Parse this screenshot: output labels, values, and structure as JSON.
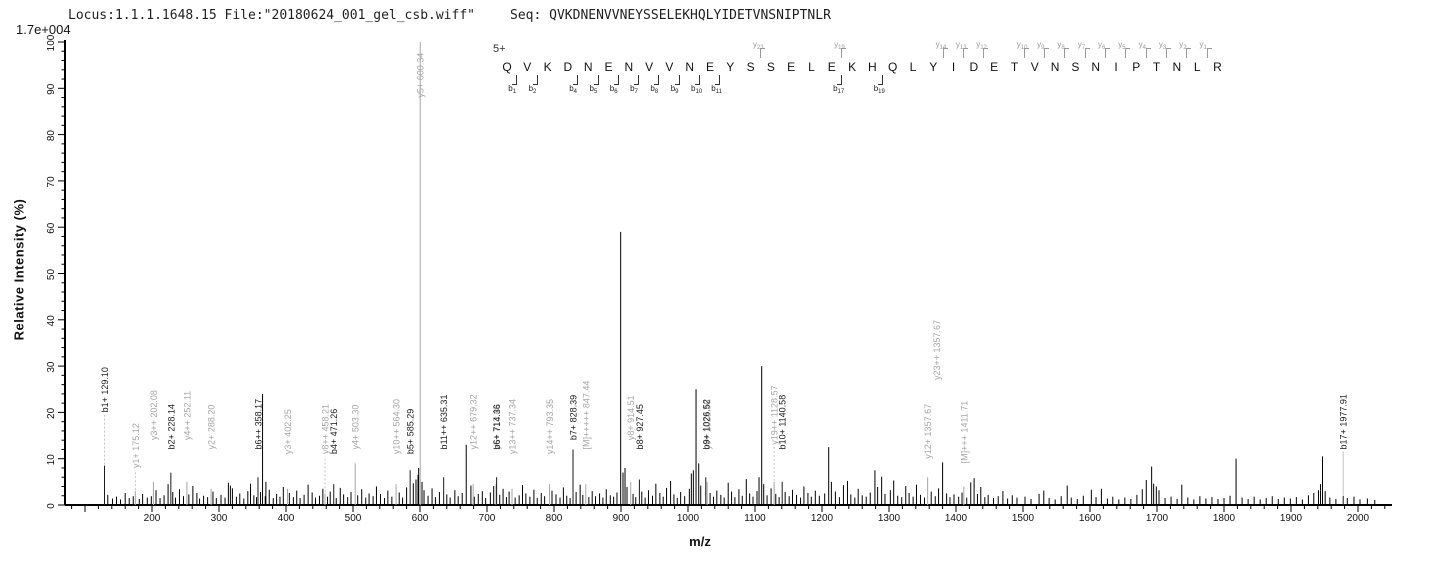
{
  "header": {
    "locus_file": "Locus:1.1.1.1648.15 File:\"20180624_001_gel_csb.wiff\"",
    "seq_label": "Seq:",
    "sequence": "QVKDNENVVNEYSSELEKHQLYIDETVNSNIPTNLR",
    "max_intensity_scale": "1.7e+004"
  },
  "sequence_annotation": {
    "charge": "5+",
    "residues": "QVKDNENVVNEYSSELEKHQLYIDETVNSNIPTNLR",
    "fragment_marks": {
      "b": [
        1,
        2,
        4,
        5,
        6,
        7,
        8,
        9,
        10,
        11,
        17,
        19
      ],
      "y": [
        23,
        19,
        14,
        13,
        12,
        10,
        9,
        8,
        7,
        6,
        5,
        4,
        3,
        2,
        1
      ]
    }
  },
  "chart_data": {
    "type": "bar",
    "subtype": "ms2-stick-spectrum",
    "title": "",
    "xlabel": "m/z",
    "ylabel": "Relative  Intensity (%)",
    "xlim": [
      70,
      2050
    ],
    "ylim": [
      0,
      100
    ],
    "x_major_ticks": [
      200,
      300,
      400,
      500,
      600,
      700,
      800,
      900,
      1000,
      1100,
      1200,
      1300,
      1400,
      1500,
      1600,
      1700,
      1800,
      1900,
      2000
    ],
    "y_major_ticks": [
      0,
      10,
      20,
      30,
      40,
      50,
      60,
      70,
      80,
      90,
      100
    ],
    "grid": "off",
    "legend": "none",
    "colors": {
      "b_ion": "#1a1a1a",
      "y_ion": "#a5a5a5",
      "precursor": "#a5a5a5",
      "unlabeled": "#000000",
      "leader": "#bdbdbd"
    },
    "labeled_peaks": [
      {
        "mz": 129.1,
        "pct": 8.5,
        "ion": "b",
        "label": "b1+ 129.10",
        "label_pct": 20,
        "leader": "dashed"
      },
      {
        "mz": 175.12,
        "pct": 3.0,
        "ion": "y",
        "label": "y1+ 175.12",
        "label_pct": 8,
        "leader": "dashed"
      },
      {
        "mz": 202.08,
        "pct": 5.0,
        "ion": "y",
        "label": "y3++ 202.08",
        "label_pct": 14
      },
      {
        "mz": 228.14,
        "pct": 7.0,
        "ion": "b",
        "label": "b2+ 228.14",
        "label_pct": 12
      },
      {
        "mz": 252.11,
        "pct": 5.0,
        "ion": "y",
        "label": "y4++ 252.11",
        "label_pct": 14
      },
      {
        "mz": 288.2,
        "pct": 3.5,
        "ion": "y",
        "label": "y2+ 288.20",
        "label_pct": 12
      },
      {
        "mz": 358.17,
        "pct": 6.0,
        "ion": "b",
        "label": "b6++ 358.17",
        "label_pct": 12
      },
      {
        "mz": 402.25,
        "pct": 3.5,
        "ion": "y",
        "label": "y3+ 402.25",
        "label_pct": 11
      },
      {
        "mz": 458.21,
        "pct": 2.5,
        "ion": "y",
        "label": "y8++ 458.21",
        "label_pct": 11,
        "leader": "dashed"
      },
      {
        "mz": 471.26,
        "pct": 4.5,
        "ion": "b",
        "label": "b4+ 471.26",
        "label_pct": 11
      },
      {
        "mz": 503.3,
        "pct": 9.0,
        "ion": "y",
        "label": "y4+ 503.30",
        "label_pct": 12
      },
      {
        "mz": 564.3,
        "pct": 4.5,
        "ion": "y",
        "label": "y10++ 564.30",
        "label_pct": 11
      },
      {
        "mz": 585.29,
        "pct": 7.5,
        "ion": "b",
        "label": "b5+ 585.29",
        "label_pct": 11
      },
      {
        "mz": 600.34,
        "pct": 100,
        "ion": "y",
        "label": "y5+ 600.34",
        "label_pct": 88
      },
      {
        "mz": 635.31,
        "pct": 6.0,
        "ion": "b",
        "label": "b11++ 635.31",
        "label_pct": 12
      },
      {
        "mz": 679.32,
        "pct": 4.5,
        "ion": "y",
        "label": "y12++ 679.32",
        "label_pct": 12
      },
      {
        "mz": 713.43,
        "pct": 4.5,
        "ion": "y",
        "label": "y6+ 713.43",
        "label_pct": 12
      },
      {
        "mz": 714.36,
        "pct": 6.0,
        "ion": "b",
        "label": "b6+ 714.36",
        "label_pct": 12
      },
      {
        "mz": 737.34,
        "pct": 3.5,
        "ion": "y",
        "label": "y13++ 737.34",
        "label_pct": 11
      },
      {
        "mz": 793.35,
        "pct": 4.5,
        "ion": "y",
        "label": "y14++ 793.35",
        "label_pct": 11
      },
      {
        "mz": 828.39,
        "pct": 12.0,
        "ion": "b",
        "label": "b7+ 828.39",
        "label_pct": 14
      },
      {
        "mz": 847.44,
        "pct": 4.5,
        "ion": "M",
        "label": "[M]+++++ 847.44",
        "label_pct": 12
      },
      {
        "mz": 914.51,
        "pct": 5.0,
        "ion": "y",
        "label": "y8+ 914.51",
        "label_pct": 14
      },
      {
        "mz": 927.45,
        "pct": 5.5,
        "ion": "b",
        "label": "b8+ 927.45",
        "label_pct": 12
      },
      {
        "mz": 1026.52,
        "pct": 6.0,
        "ion": "b",
        "label": "b9+ 1026.52",
        "label_pct": 12
      },
      {
        "mz": 1028.56,
        "pct": 5.0,
        "ion": "y",
        "label": "y9+ 1028.56",
        "label_pct": 12
      },
      {
        "mz": 1128.57,
        "pct": 5.0,
        "ion": "y",
        "label": "y19++ 1128.57",
        "label_pct": 13,
        "leader": "dashed"
      },
      {
        "mz": 1140.58,
        "pct": 5.0,
        "ion": "b",
        "label": "b10+ 1140.58",
        "label_pct": 12
      },
      {
        "mz": 1357.67,
        "pct": 6.0,
        "ion": "y",
        "label": "y12+ 1357.67",
        "label_pct": 10
      },
      {
        "mz": 1357.67,
        "pct": 0,
        "ion": "y",
        "label": "y23++ 1357.67",
        "label_pct": 27,
        "label_dx": 9,
        "no_peak": true
      },
      {
        "mz": 1411.71,
        "pct": 4.0,
        "ion": "M",
        "label": "[M]+++ 1411.71",
        "label_pct": 9
      },
      {
        "mz": 1977.91,
        "pct": 2.0,
        "ion": "b",
        "label": "b17+ 1977.91",
        "label_pct": 12,
        "leader": "solid"
      }
    ],
    "major_unlabeled_peaks": [
      [
        365,
        24
      ],
      [
        370,
        5
      ],
      [
        598,
        8
      ],
      [
        669,
        13
      ],
      [
        899.5,
        59
      ],
      [
        1012,
        25
      ],
      [
        1016,
        9
      ],
      [
        1110,
        30
      ],
      [
        1106,
        6
      ],
      [
        1210,
        12.5
      ],
      [
        1279,
        7.5
      ],
      [
        1380,
        9.2
      ],
      [
        1818,
        10
      ],
      [
        1947,
        10.5
      ],
      [
        1692,
        8.3
      ]
    ],
    "noise_peaks": [
      [
        134,
        2.2
      ],
      [
        141,
        1.4
      ],
      [
        147,
        1.8
      ],
      [
        153,
        1.2
      ],
      [
        160,
        2.6
      ],
      [
        166,
        1.5
      ],
      [
        172,
        1.9
      ],
      [
        181,
        1.3
      ],
      [
        186,
        2.4
      ],
      [
        193,
        1.6
      ],
      [
        199,
        1.9
      ],
      [
        206,
        3.2
      ],
      [
        212,
        1.5
      ],
      [
        218,
        2.1
      ],
      [
        224,
        4.5
      ],
      [
        231,
        2.8
      ],
      [
        235,
        1.6
      ],
      [
        241,
        3.4
      ],
      [
        247,
        1.9
      ],
      [
        255,
        2.3
      ],
      [
        261,
        4.1
      ],
      [
        267,
        2.6
      ],
      [
        271,
        1.4
      ],
      [
        277,
        2.0
      ],
      [
        283,
        1.7
      ],
      [
        291,
        2.9
      ],
      [
        296,
        1.5
      ],
      [
        303,
        2.2
      ],
      [
        309,
        1.6
      ],
      [
        314,
        4.8
      ],
      [
        317,
        4.2
      ],
      [
        320,
        3.6
      ],
      [
        326,
        1.8
      ],
      [
        331,
        2.5
      ],
      [
        337,
        1.4
      ],
      [
        343,
        3.0
      ],
      [
        347,
        4.6
      ],
      [
        352,
        2.1
      ],
      [
        356,
        1.7
      ],
      [
        362,
        2.8
      ],
      [
        369,
        1.9
      ],
      [
        375,
        3.3
      ],
      [
        381,
        1.5
      ],
      [
        386,
        2.4
      ],
      [
        391,
        1.8
      ],
      [
        396,
        3.9
      ],
      [
        405,
        2.6
      ],
      [
        411,
        1.7
      ],
      [
        416,
        3.1
      ],
      [
        421,
        1.5
      ],
      [
        427,
        2.2
      ],
      [
        433,
        4.4
      ],
      [
        439,
        2.7
      ],
      [
        444,
        1.6
      ],
      [
        450,
        2.0
      ],
      [
        455,
        3.5
      ],
      [
        462,
        1.8
      ],
      [
        466,
        2.9
      ],
      [
        475,
        1.5
      ],
      [
        481,
        3.7
      ],
      [
        486,
        2.3
      ],
      [
        492,
        1.7
      ],
      [
        497,
        2.8
      ],
      [
        507,
        2.1
      ],
      [
        513,
        3.4
      ],
      [
        519,
        1.6
      ],
      [
        524,
        2.5
      ],
      [
        530,
        1.9
      ],
      [
        535,
        4.0
      ],
      [
        541,
        2.4
      ],
      [
        547,
        1.5
      ],
      [
        552,
        3.1
      ],
      [
        558,
        1.8
      ],
      [
        569,
        2.7
      ],
      [
        574,
        1.6
      ],
      [
        580,
        3.8
      ],
      [
        590,
        4.7
      ],
      [
        594,
        5.5
      ],
      [
        597,
        6.5
      ],
      [
        603,
        5.0
      ],
      [
        606,
        3.2
      ],
      [
        612,
        2.0
      ],
      [
        618,
        3.6
      ],
      [
        623,
        1.7
      ],
      [
        629,
        2.8
      ],
      [
        640,
        2.3
      ],
      [
        645,
        1.6
      ],
      [
        652,
        3.2
      ],
      [
        657,
        1.9
      ],
      [
        663,
        2.6
      ],
      [
        676,
        4.2
      ],
      [
        681,
        1.8
      ],
      [
        687,
        2.4
      ],
      [
        693,
        3.0
      ],
      [
        698,
        1.5
      ],
      [
        705,
        2.7
      ],
      [
        710,
        4.1
      ],
      [
        719,
        2.2
      ],
      [
        724,
        3.5
      ],
      [
        729,
        1.7
      ],
      [
        733,
        2.9
      ],
      [
        742,
        1.6
      ],
      [
        748,
        2.1
      ],
      [
        753,
        4.3
      ],
      [
        758,
        2.5
      ],
      [
        764,
        1.8
      ],
      [
        770,
        3.3
      ],
      [
        775,
        1.5
      ],
      [
        781,
        2.6
      ],
      [
        786,
        1.9
      ],
      [
        797,
        3.1
      ],
      [
        803,
        2.3
      ],
      [
        809,
        1.6
      ],
      [
        814,
        3.8
      ],
      [
        819,
        2.0
      ],
      [
        824,
        1.5
      ],
      [
        833,
        2.8
      ],
      [
        839,
        4.4
      ],
      [
        843,
        2.2
      ],
      [
        852,
        1.7
      ],
      [
        857,
        3.0
      ],
      [
        862,
        1.9
      ],
      [
        868,
        2.5
      ],
      [
        873,
        1.6
      ],
      [
        878,
        3.4
      ],
      [
        884,
        2.1
      ],
      [
        889,
        1.8
      ],
      [
        894,
        2.7
      ],
      [
        903,
        7.0
      ],
      [
        906,
        8.0
      ],
      [
        909,
        3.9
      ],
      [
        918,
        2.4
      ],
      [
        922,
        1.7
      ],
      [
        931,
        2.9
      ],
      [
        936,
        1.6
      ],
      [
        941,
        3.2
      ],
      [
        947,
        2.0
      ],
      [
        952,
        4.6
      ],
      [
        958,
        2.6
      ],
      [
        963,
        1.8
      ],
      [
        968,
        3.7
      ],
      [
        974,
        5.2
      ],
      [
        979,
        2.3
      ],
      [
        984,
        1.5
      ],
      [
        989,
        2.8
      ],
      [
        995,
        1.9
      ],
      [
        1002,
        3.5
      ],
      [
        1005,
        6.8
      ],
      [
        1008,
        7.5
      ],
      [
        1019,
        4.2
      ],
      [
        1033,
        2.6
      ],
      [
        1038,
        1.8
      ],
      [
        1043,
        3.1
      ],
      [
        1049,
        2.2
      ],
      [
        1054,
        1.6
      ],
      [
        1060,
        4.8
      ],
      [
        1065,
        2.9
      ],
      [
        1070,
        1.7
      ],
      [
        1076,
        3.4
      ],
      [
        1081,
        2.0
      ],
      [
        1087,
        5.6
      ],
      [
        1092,
        2.5
      ],
      [
        1097,
        1.8
      ],
      [
        1103,
        3.0
      ],
      [
        1113,
        4.5
      ],
      [
        1118,
        2.1
      ],
      [
        1124,
        3.6
      ],
      [
        1131,
        2.4
      ],
      [
        1136,
        1.7
      ],
      [
        1145,
        2.8
      ],
      [
        1151,
        1.9
      ],
      [
        1156,
        3.3
      ],
      [
        1162,
        2.2
      ],
      [
        1168,
        1.6
      ],
      [
        1173,
        4.0
      ],
      [
        1179,
        2.6
      ],
      [
        1184,
        1.8
      ],
      [
        1190,
        3.1
      ],
      [
        1196,
        2.0
      ],
      [
        1204,
        2.5
      ],
      [
        1214,
        5.0
      ],
      [
        1220,
        2.9
      ],
      [
        1226,
        1.7
      ],
      [
        1232,
        4.3
      ],
      [
        1238,
        5.2
      ],
      [
        1243,
        2.3
      ],
      [
        1249,
        1.6
      ],
      [
        1254,
        3.5
      ],
      [
        1260,
        2.1
      ],
      [
        1266,
        1.8
      ],
      [
        1272,
        2.7
      ],
      [
        1283,
        3.9
      ],
      [
        1289,
        6.1
      ],
      [
        1294,
        2.4
      ],
      [
        1302,
        3.2
      ],
      [
        1307,
        5.3
      ],
      [
        1313,
        2.0
      ],
      [
        1319,
        1.7
      ],
      [
        1325,
        4.1
      ],
      [
        1330,
        2.6
      ],
      [
        1336,
        1.8
      ],
      [
        1341,
        4.4
      ],
      [
        1347,
        2.2
      ],
      [
        1353,
        1.6
      ],
      [
        1363,
        2.9
      ],
      [
        1369,
        1.9
      ],
      [
        1374,
        3.6
      ],
      [
        1386,
        2.5
      ],
      [
        1391,
        1.7
      ],
      [
        1397,
        2.3
      ],
      [
        1404,
        1.8
      ],
      [
        1409,
        2.7
      ],
      [
        1416,
        1.6
      ],
      [
        1422,
        4.9
      ],
      [
        1427,
        5.8
      ],
      [
        1432,
        2.4
      ],
      [
        1437,
        3.9
      ],
      [
        1443,
        1.7
      ],
      [
        1448,
        2.2
      ],
      [
        1456,
        1.5
      ],
      [
        1463,
        1.9
      ],
      [
        1470,
        3.0
      ],
      [
        1477,
        1.4
      ],
      [
        1484,
        2.1
      ],
      [
        1491,
        1.6
      ],
      [
        1503,
        1.8
      ],
      [
        1512,
        1.3
      ],
      [
        1524,
        2.4
      ],
      [
        1531,
        3.1
      ],
      [
        1539,
        1.5
      ],
      [
        1548,
        1.2
      ],
      [
        1557,
        1.9
      ],
      [
        1566,
        4.2
      ],
      [
        1572,
        1.6
      ],
      [
        1581,
        1.3
      ],
      [
        1590,
        2.0
      ],
      [
        1602,
        3.3
      ],
      [
        1609,
        1.7
      ],
      [
        1617,
        3.5
      ],
      [
        1626,
        1.4
      ],
      [
        1634,
        1.8
      ],
      [
        1643,
        1.2
      ],
      [
        1652,
        1.6
      ],
      [
        1661,
        1.3
      ],
      [
        1670,
        2.2
      ],
      [
        1678,
        3.4
      ],
      [
        1684,
        5.4
      ],
      [
        1695,
        4.6
      ],
      [
        1699,
        4.0
      ],
      [
        1703,
        3.2
      ],
      [
        1712,
        1.5
      ],
      [
        1721,
        1.8
      ],
      [
        1730,
        1.3
      ],
      [
        1737,
        4.4
      ],
      [
        1746,
        1.6
      ],
      [
        1755,
        1.2
      ],
      [
        1764,
        1.9
      ],
      [
        1773,
        1.4
      ],
      [
        1782,
        1.7
      ],
      [
        1791,
        1.3
      ],
      [
        1800,
        1.5
      ],
      [
        1809,
        2.0
      ],
      [
        1827,
        1.6
      ],
      [
        1836,
        1.3
      ],
      [
        1845,
        1.8
      ],
      [
        1854,
        1.2
      ],
      [
        1863,
        1.5
      ],
      [
        1872,
        1.9
      ],
      [
        1881,
        1.3
      ],
      [
        1890,
        1.6
      ],
      [
        1899,
        1.4
      ],
      [
        1908,
        1.7
      ],
      [
        1917,
        1.2
      ],
      [
        1926,
        2.1
      ],
      [
        1934,
        2.6
      ],
      [
        1941,
        3.2
      ],
      [
        1944,
        4.5
      ],
      [
        1951,
        3.0
      ],
      [
        1958,
        1.6
      ],
      [
        1967,
        1.3
      ],
      [
        1984,
        1.5
      ],
      [
        1994,
        1.8
      ],
      [
        2003,
        1.2
      ],
      [
        2014,
        1.4
      ],
      [
        2025,
        1.1
      ]
    ]
  }
}
